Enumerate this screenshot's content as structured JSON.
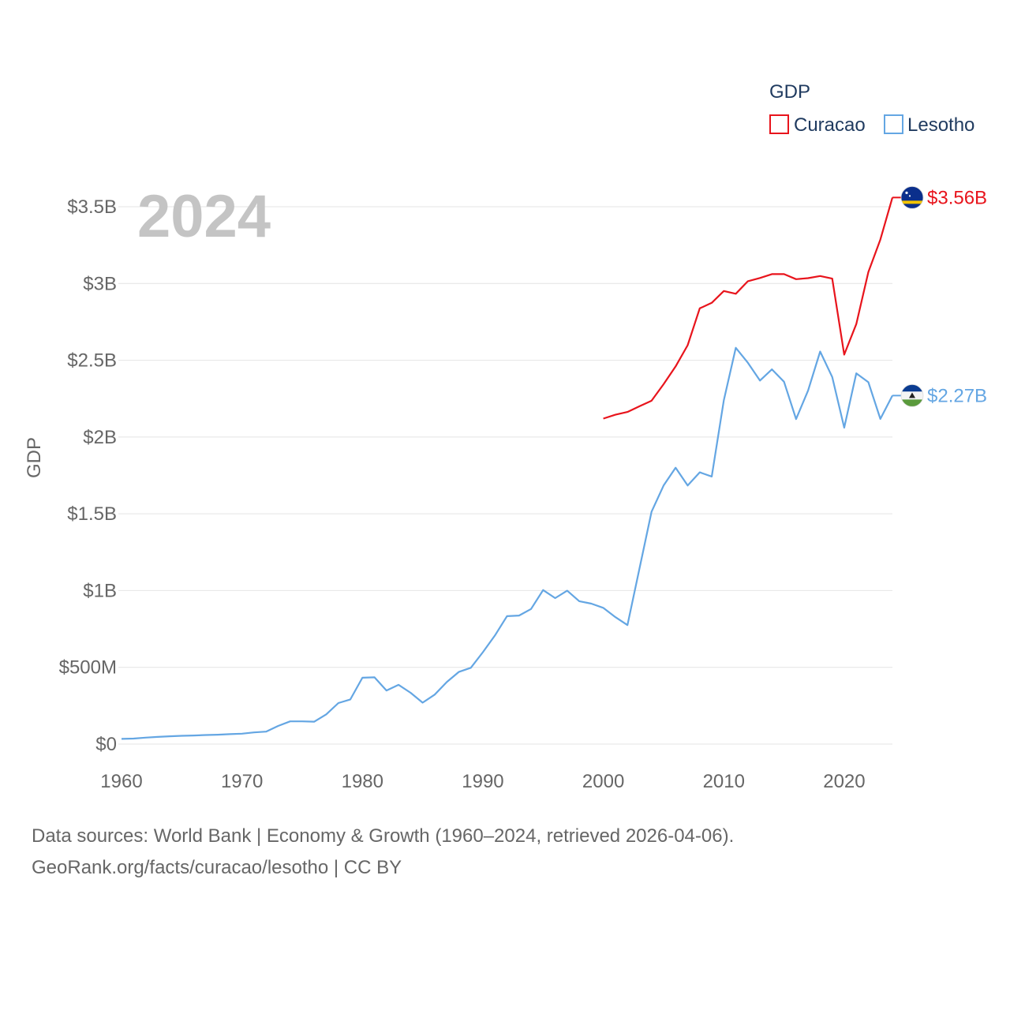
{
  "chart_data": {
    "type": "line",
    "ylabel": "GDP",
    "xlabel": "",
    "year_stamp": "2024",
    "legend": {
      "title": "GDP",
      "position": "top-right"
    },
    "xlim": [
      1960,
      2024
    ],
    "ylim": [
      0,
      3600000000
    ],
    "x_ticks": [
      1960,
      1970,
      1980,
      1990,
      2000,
      2010,
      2020
    ],
    "x_tick_labels": [
      "1960",
      "1970",
      "1980",
      "1990",
      "2000",
      "2010",
      "2020"
    ],
    "y_ticks": [
      0,
      500000000,
      1000000000,
      1500000000,
      2000000000,
      2500000000,
      3000000000,
      3500000000
    ],
    "y_tick_labels": [
      "$0",
      "$500M",
      "$1B",
      "$1.5B",
      "$2B",
      "$2.5B",
      "$3B",
      "$3.5B"
    ],
    "grid": true,
    "series": [
      {
        "name": "Curacao",
        "color": "#e8141c",
        "end_label": "$3.56B",
        "flag_icon": "curacao-flag-icon",
        "x": [
          2000,
          2001,
          2002,
          2003,
          2004,
          2005,
          2006,
          2007,
          2008,
          2009,
          2010,
          2011,
          2012,
          2013,
          2014,
          2015,
          2016,
          2017,
          2018,
          2019,
          2020,
          2021,
          2022,
          2023,
          2024
        ],
        "values": [
          2120000000,
          2145000000,
          2163000000,
          2200000000,
          2236000000,
          2344000000,
          2460000000,
          2598000000,
          2838000000,
          2874000000,
          2951000000,
          2933000000,
          3015000000,
          3036000000,
          3061000000,
          3061000000,
          3028000000,
          3035000000,
          3049000000,
          3032000000,
          2537000000,
          2736000000,
          3075000000,
          3286000000,
          3560000000
        ]
      },
      {
        "name": "Lesotho",
        "color": "#64a6e3",
        "end_label": "$2.27B",
        "flag_icon": "lesotho-flag-icon",
        "x": [
          1960,
          1961,
          1962,
          1963,
          1964,
          1965,
          1966,
          1967,
          1968,
          1969,
          1970,
          1971,
          1972,
          1973,
          1974,
          1975,
          1976,
          1977,
          1978,
          1979,
          1980,
          1981,
          1982,
          1983,
          1984,
          1985,
          1986,
          1987,
          1988,
          1989,
          1990,
          1991,
          1992,
          1993,
          1994,
          1995,
          1996,
          1997,
          1998,
          1999,
          2000,
          2001,
          2002,
          2003,
          2004,
          2005,
          2006,
          2007,
          2008,
          2009,
          2010,
          2011,
          2012,
          2013,
          2014,
          2015,
          2016,
          2017,
          2018,
          2019,
          2020,
          2021,
          2022,
          2023,
          2024
        ],
        "values": [
          34000000,
          36000000,
          42000000,
          47000000,
          51000000,
          54000000,
          56000000,
          59000000,
          61000000,
          65000000,
          68000000,
          76000000,
          81000000,
          118000000,
          148000000,
          148000000,
          146000000,
          194000000,
          267000000,
          291000000,
          432000000,
          435000000,
          349000000,
          386000000,
          334000000,
          270000000,
          322000000,
          404000000,
          470000000,
          497000000,
          599000000,
          707000000,
          833000000,
          837000000,
          880000000,
          1003000000,
          951000000,
          999000000,
          931000000,
          915000000,
          887000000,
          827000000,
          775000000,
          1143000000,
          1513000000,
          1684000000,
          1800000000,
          1684000000,
          1770000000,
          1743000000,
          2239000000,
          2581000000,
          2484000000,
          2368000000,
          2441000000,
          2360000000,
          2117000000,
          2303000000,
          2557000000,
          2391000000,
          2061000000,
          2415000000,
          2357000000,
          2118000000,
          2270000000
        ]
      }
    ]
  },
  "source": {
    "line1": "Data sources: World Bank | Economy & Growth (1960–2024, retrieved 2026-04-06).",
    "line2": "GeoRank.org/facts/curacao/lesotho | CC BY"
  }
}
